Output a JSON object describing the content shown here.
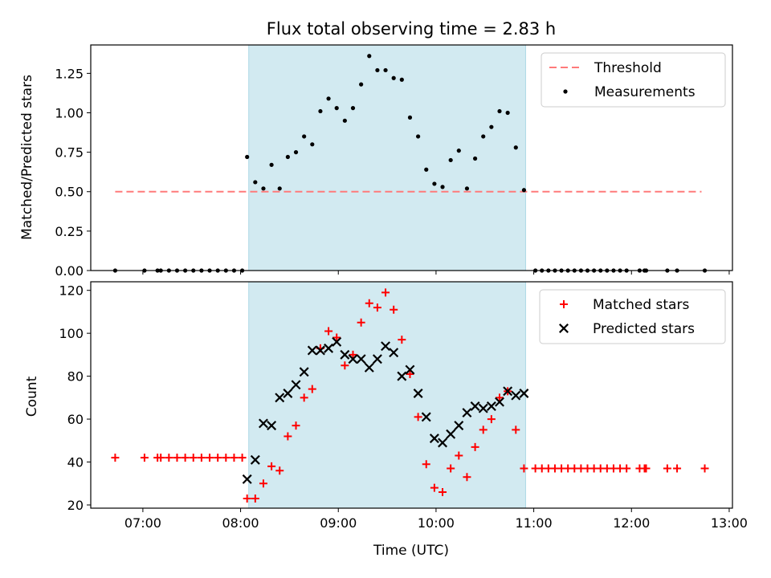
{
  "chart_data": [
    {
      "type": "scatter",
      "title": "Flux total observing time = 2.83 h",
      "xlabel": "",
      "ylabel": "Matched/Predicted stars",
      "xlim": [
        "06:28",
        "13:02"
      ],
      "ylim": [
        0,
        1.43
      ],
      "xticks": [
        "07:00",
        "08:00",
        "09:00",
        "10:00",
        "11:00",
        "12:00",
        "13:00"
      ],
      "yticks": [
        0.0,
        0.25,
        0.5,
        0.75,
        1.0,
        1.25
      ],
      "ytick_labels": [
        "0.00",
        "0.25",
        "0.50",
        "0.75",
        "1.00",
        "1.25"
      ],
      "shaded_span": {
        "x": [
          "08:05",
          "10:55"
        ],
        "color": "#add8e6"
      },
      "legend_position": "top-right",
      "grid": false,
      "threshold": {
        "name": "Threshold",
        "value": 0.5,
        "x": [
          "06:43",
          "12:43"
        ],
        "color": "#ff7a7a"
      },
      "series": [
        {
          "name": "Measurements",
          "marker": "dot",
          "color": "#000000",
          "points": [
            [
              "06:43",
              0
            ],
            [
              "07:01",
              0
            ],
            [
              "07:09",
              0
            ],
            [
              "07:11",
              0
            ],
            [
              "07:16",
              0
            ],
            [
              "07:21",
              0
            ],
            [
              "07:26",
              0
            ],
            [
              "07:31",
              0
            ],
            [
              "07:36",
              0
            ],
            [
              "07:41",
              0
            ],
            [
              "07:46",
              0
            ],
            [
              "07:51",
              0
            ],
            [
              "07:56",
              0
            ],
            [
              "08:01",
              0
            ],
            [
              "08:04",
              0.72
            ],
            [
              "08:09",
              0.56
            ],
            [
              "08:14",
              0.52
            ],
            [
              "08:19",
              0.67
            ],
            [
              "08:24",
              0.52
            ],
            [
              "08:29",
              0.72
            ],
            [
              "08:34",
              0.75
            ],
            [
              "08:39",
              0.85
            ],
            [
              "08:44",
              0.8
            ],
            [
              "08:49",
              1.01
            ],
            [
              "08:54",
              1.09
            ],
            [
              "08:59",
              1.03
            ],
            [
              "09:04",
              0.95
            ],
            [
              "09:09",
              1.03
            ],
            [
              "09:14",
              1.18
            ],
            [
              "09:19",
              1.36
            ],
            [
              "09:24",
              1.27
            ],
            [
              "09:29",
              1.27
            ],
            [
              "09:34",
              1.22
            ],
            [
              "09:39",
              1.21
            ],
            [
              "09:44",
              0.97
            ],
            [
              "09:49",
              0.85
            ],
            [
              "09:54",
              0.64
            ],
            [
              "09:59",
              0.55
            ],
            [
              "10:04",
              0.53
            ],
            [
              "10:09",
              0.7
            ],
            [
              "10:14",
              0.76
            ],
            [
              "10:19",
              0.52
            ],
            [
              "10:24",
              0.71
            ],
            [
              "10:29",
              0.85
            ],
            [
              "10:34",
              0.91
            ],
            [
              "10:39",
              1.01
            ],
            [
              "10:44",
              1.0
            ],
            [
              "10:49",
              0.78
            ],
            [
              "10:54",
              0.51
            ],
            [
              "11:01",
              0
            ],
            [
              "11:05",
              0
            ],
            [
              "11:09",
              0
            ],
            [
              "11:13",
              0
            ],
            [
              "11:17",
              0
            ],
            [
              "11:21",
              0
            ],
            [
              "11:25",
              0
            ],
            [
              "11:29",
              0
            ],
            [
              "11:33",
              0
            ],
            [
              "11:37",
              0
            ],
            [
              "11:41",
              0
            ],
            [
              "11:45",
              0
            ],
            [
              "11:49",
              0
            ],
            [
              "11:53",
              0
            ],
            [
              "11:57",
              0
            ],
            [
              "12:05",
              0
            ],
            [
              "12:08",
              0
            ],
            [
              "12:09",
              0
            ],
            [
              "12:22",
              0
            ],
            [
              "12:28",
              0
            ],
            [
              "12:45",
              0
            ]
          ]
        }
      ]
    },
    {
      "type": "scatter",
      "title": "",
      "xlabel": "Time (UTC)",
      "ylabel": "Count",
      "xlim": [
        "06:28",
        "13:02"
      ],
      "ylim": [
        18.5,
        124
      ],
      "xticks": [
        "07:00",
        "08:00",
        "09:00",
        "10:00",
        "11:00",
        "12:00",
        "13:00"
      ],
      "yticks": [
        20,
        40,
        60,
        80,
        100,
        120
      ],
      "shaded_span": {
        "x": [
          "08:05",
          "10:55"
        ],
        "color": "#add8e6"
      },
      "legend_position": "top-right",
      "grid": false,
      "series": [
        {
          "name": "Matched stars",
          "marker": "plus",
          "color": "#ff0000",
          "points": [
            [
              "06:43",
              42
            ],
            [
              "07:01",
              42
            ],
            [
              "07:09",
              42
            ],
            [
              "07:11",
              42
            ],
            [
              "07:16",
              42
            ],
            [
              "07:21",
              42
            ],
            [
              "07:26",
              42
            ],
            [
              "07:31",
              42
            ],
            [
              "07:36",
              42
            ],
            [
              "07:41",
              42
            ],
            [
              "07:46",
              42
            ],
            [
              "07:51",
              42
            ],
            [
              "07:56",
              42
            ],
            [
              "08:01",
              42
            ],
            [
              "08:04",
              23
            ],
            [
              "08:09",
              23
            ],
            [
              "08:14",
              30
            ],
            [
              "08:19",
              38
            ],
            [
              "08:24",
              36
            ],
            [
              "08:29",
              52
            ],
            [
              "08:34",
              57
            ],
            [
              "08:39",
              70
            ],
            [
              "08:44",
              74
            ],
            [
              "08:49",
              93
            ],
            [
              "08:54",
              101
            ],
            [
              "08:59",
              98
            ],
            [
              "09:04",
              85
            ],
            [
              "09:09",
              90
            ],
            [
              "09:14",
              105
            ],
            [
              "09:19",
              114
            ],
            [
              "09:24",
              112
            ],
            [
              "09:29",
              119
            ],
            [
              "09:34",
              111
            ],
            [
              "09:39",
              97
            ],
            [
              "09:44",
              81
            ],
            [
              "09:49",
              61
            ],
            [
              "09:54",
              39
            ],
            [
              "09:59",
              28
            ],
            [
              "10:04",
              26
            ],
            [
              "10:09",
              37
            ],
            [
              "10:14",
              43
            ],
            [
              "10:19",
              33
            ],
            [
              "10:24",
              47
            ],
            [
              "10:29",
              55
            ],
            [
              "10:34",
              60
            ],
            [
              "10:39",
              70
            ],
            [
              "10:44",
              73
            ],
            [
              "10:49",
              55
            ],
            [
              "10:54",
              37
            ],
            [
              "11:01",
              37
            ],
            [
              "11:05",
              37
            ],
            [
              "11:09",
              37
            ],
            [
              "11:13",
              37
            ],
            [
              "11:17",
              37
            ],
            [
              "11:21",
              37
            ],
            [
              "11:25",
              37
            ],
            [
              "11:29",
              37
            ],
            [
              "11:33",
              37
            ],
            [
              "11:37",
              37
            ],
            [
              "11:41",
              37
            ],
            [
              "11:45",
              37
            ],
            [
              "11:49",
              37
            ],
            [
              "11:53",
              37
            ],
            [
              "11:57",
              37
            ],
            [
              "12:05",
              37
            ],
            [
              "12:08",
              37
            ],
            [
              "12:09",
              37
            ],
            [
              "12:22",
              37
            ],
            [
              "12:28",
              37
            ],
            [
              "12:45",
              37
            ]
          ]
        },
        {
          "name": "Predicted stars",
          "marker": "x",
          "color": "#000000",
          "points": [
            [
              "08:04",
              32
            ],
            [
              "08:09",
              41
            ],
            [
              "08:14",
              58
            ],
            [
              "08:19",
              57
            ],
            [
              "08:24",
              70
            ],
            [
              "08:29",
              72
            ],
            [
              "08:34",
              76
            ],
            [
              "08:39",
              82
            ],
            [
              "08:44",
              92
            ],
            [
              "08:49",
              92
            ],
            [
              "08:54",
              93
            ],
            [
              "08:59",
              96
            ],
            [
              "09:04",
              90
            ],
            [
              "09:09",
              88
            ],
            [
              "09:14",
              88
            ],
            [
              "09:19",
              84
            ],
            [
              "09:24",
              88
            ],
            [
              "09:29",
              94
            ],
            [
              "09:34",
              91
            ],
            [
              "09:39",
              80
            ],
            [
              "09:44",
              83
            ],
            [
              "09:49",
              72
            ],
            [
              "09:54",
              61
            ],
            [
              "09:59",
              51
            ],
            [
              "10:04",
              49
            ],
            [
              "10:09",
              53
            ],
            [
              "10:14",
              57
            ],
            [
              "10:19",
              63
            ],
            [
              "10:24",
              66
            ],
            [
              "10:29",
              65
            ],
            [
              "10:34",
              66
            ],
            [
              "10:39",
              68
            ],
            [
              "10:44",
              73
            ],
            [
              "10:49",
              71
            ],
            [
              "10:54",
              72
            ]
          ]
        }
      ]
    }
  ]
}
